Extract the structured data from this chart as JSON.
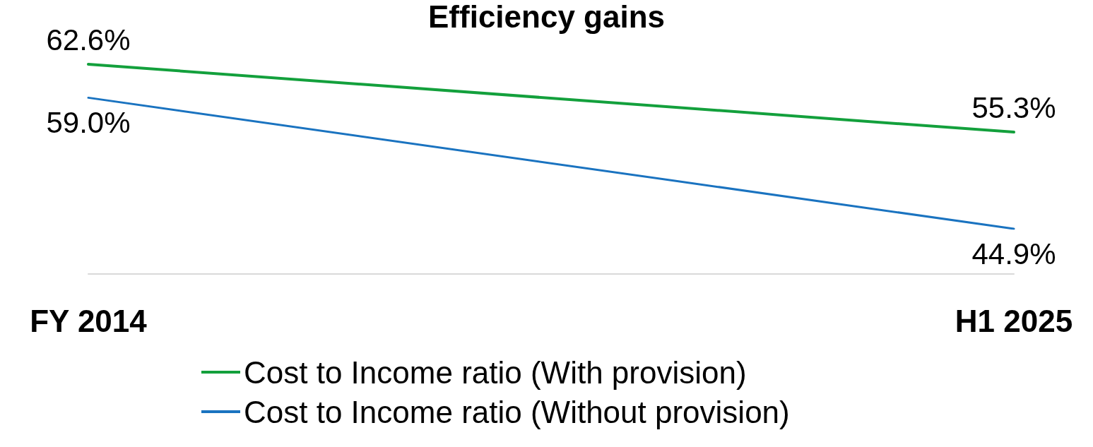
{
  "chart_data": {
    "type": "line",
    "title": "Efficiency gains",
    "categories": [
      "FY 2014",
      "H1 2025"
    ],
    "tick_labels": "x",
    "grid": false,
    "legend": "bottom",
    "marker": "none",
    "line_style": "solid",
    "series": [
      {
        "name": "Cost to Income ratio (With provision)",
        "color": "#13a03c",
        "values": [
          62.6,
          55.3
        ],
        "value_labels": [
          "62.6%",
          "55.3%"
        ]
      },
      {
        "name": "Cost to Income ratio (Without provision)",
        "color": "#1a73c0",
        "values": [
          59.0,
          44.9
        ],
        "value_labels": [
          "59.0%",
          "44.9%"
        ]
      }
    ]
  }
}
